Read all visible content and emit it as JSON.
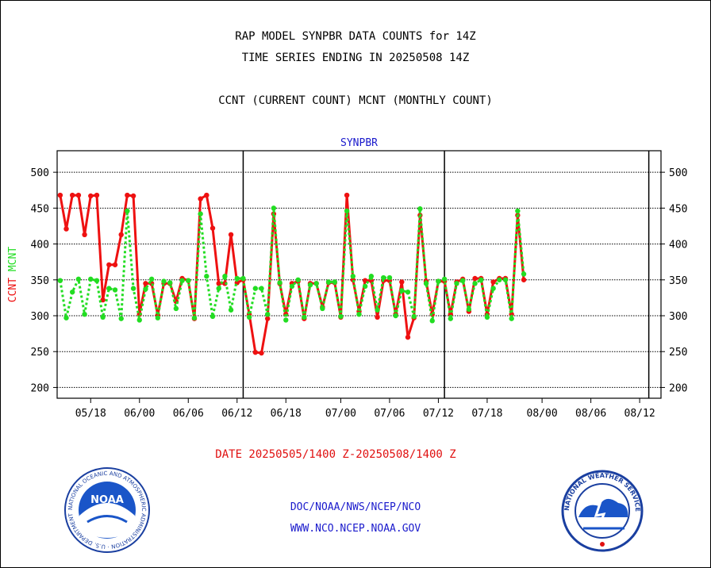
{
  "header": {
    "title_line1": "RAP MODEL SYNPBR DATA COUNTS for 14Z",
    "title_line2": "TIME SERIES ENDING IN 20250508 14Z",
    "subtitle": "CCNT (CURRENT COUNT) MCNT (MONTHLY COUNT)"
  },
  "footer": {
    "date_range": "DATE 20250505/1400 Z-20250508/1400 Z",
    "org_line": "DOC/NOAA/NWS/NCEP/NCO",
    "web_line": "WWW.NCO.NCEP.NOAA.GOV"
  },
  "logos": {
    "left_text": "NATIONAL OCEANIC AND ATMOSPHERIC ADMINISTRATION · U.S. DEPARTMENT OF COMMERCE",
    "left_center": "NOAA",
    "right_text": "NATIONAL WEATHER SERVICE"
  },
  "colors": {
    "ccnt": "#ee1111",
    "mcnt": "#22dd22",
    "axis": "#000000",
    "plot_title": "#1a1acc"
  },
  "chart_data": {
    "type": "line",
    "title": "SYNPBR",
    "ylabel_parts": [
      "CCNT",
      "MCNT"
    ],
    "ylim": [
      185,
      530
    ],
    "yticks": [
      200,
      250,
      300,
      350,
      400,
      450,
      500
    ],
    "x_range": [
      -0.5,
      98.5
    ],
    "xticks": [
      {
        "x": 5,
        "label": "05/18"
      },
      {
        "x": 13,
        "label": "06/00"
      },
      {
        "x": 21,
        "label": "06/06"
      },
      {
        "x": 29,
        "label": "06/12"
      },
      {
        "x": 37,
        "label": "06/18"
      },
      {
        "x": 46,
        "label": "07/00"
      },
      {
        "x": 54,
        "label": "07/06"
      },
      {
        "x": 62,
        "label": "07/12"
      },
      {
        "x": 70,
        "label": "07/18"
      },
      {
        "x": 79,
        "label": "08/00"
      },
      {
        "x": 87,
        "label": "08/06"
      },
      {
        "x": 95,
        "label": "08/12"
      }
    ],
    "day_dividers": [
      30,
      63,
      96.5
    ],
    "grid": true,
    "series": [
      {
        "name": "CCNT",
        "style": "solid",
        "values": [
          468,
          421,
          468,
          468,
          413,
          467,
          468,
          322,
          371,
          371,
          413,
          468,
          467,
          302,
          345,
          345,
          301,
          345,
          345,
          320,
          352,
          349,
          296,
          463,
          468,
          422,
          345,
          345,
          413,
          346,
          350,
          302,
          249,
          248,
          296,
          442,
          345,
          302,
          345,
          348,
          296,
          345,
          345,
          312,
          346,
          346,
          298,
          468,
          350,
          306,
          349,
          349,
          298,
          349,
          349,
          302,
          347,
          270,
          297,
          440,
          348,
          302,
          348,
          348,
          302,
          347,
          351,
          306,
          352,
          352,
          302,
          347,
          352,
          352,
          302,
          440,
          350
        ]
      },
      {
        "name": "MCNT",
        "style": "dotted",
        "values": [
          349,
          297,
          333,
          351,
          302,
          351,
          349,
          298,
          338,
          336,
          296,
          446,
          338,
          294,
          337,
          351,
          297,
          348,
          346,
          310,
          349,
          349,
          297,
          442,
          355,
          299,
          338,
          355,
          308,
          352,
          352,
          298,
          338,
          338,
          302,
          450,
          346,
          294,
          341,
          350,
          298,
          343,
          345,
          310,
          347,
          347,
          299,
          446,
          355,
          302,
          341,
          355,
          308,
          353,
          353,
          300,
          335,
          333,
          299,
          449,
          345,
          293,
          348,
          351,
          296,
          345,
          349,
          309,
          345,
          350,
          298,
          338,
          350,
          350,
          296,
          446,
          358
        ]
      }
    ]
  }
}
